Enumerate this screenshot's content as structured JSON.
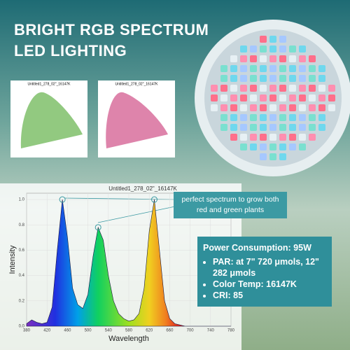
{
  "header": {
    "title": "BRIGHT RGB SPECTRUM LED LIGHTING"
  },
  "cie_diagrams": [
    {
      "title": "Untitled1_278_02\"_16147K"
    },
    {
      "title": "Untitled1_278_02\"_16147K"
    }
  ],
  "chart_data": {
    "type": "area",
    "title": "Untitled1_278_02\"_16147K",
    "x_label": "Wavelength",
    "y_label": "Intensity",
    "x": [
      380,
      390,
      400,
      410,
      420,
      430,
      440,
      450,
      460,
      470,
      480,
      490,
      500,
      510,
      520,
      530,
      540,
      550,
      560,
      570,
      580,
      590,
      600,
      610,
      620,
      630,
      640,
      650,
      660,
      670,
      680,
      690,
      700,
      710,
      720,
      730,
      740,
      750,
      760,
      770,
      780
    ],
    "values": [
      0.02,
      0.05,
      0.03,
      0.02,
      0.03,
      0.15,
      0.6,
      1.0,
      0.7,
      0.3,
      0.17,
      0.14,
      0.25,
      0.55,
      0.78,
      0.68,
      0.4,
      0.2,
      0.1,
      0.06,
      0.04,
      0.05,
      0.1,
      0.3,
      0.75,
      1.0,
      0.6,
      0.2,
      0.06,
      0.02,
      0.01,
      0,
      0,
      0,
      0,
      0,
      0,
      0,
      0,
      0,
      0
    ],
    "xlim": [
      380,
      780
    ],
    "ylim": [
      0,
      1.05
    ],
    "xticks": [
      380,
      420,
      460,
      500,
      540,
      580,
      620,
      660,
      700,
      740,
      780
    ],
    "yticks": [
      {
        "value": 0,
        "label": "0.0"
      },
      0.2,
      0.4,
      0.6,
      0.8,
      {
        "value": 1,
        "label": "1.0"
      }
    ],
    "grid": true
  },
  "callout": {
    "text": "perfect spectrum to grow both red and green plants"
  },
  "specs": {
    "heading": "Power Consumption: 95W",
    "items": [
      "PAR: at 7\" 720 μmols, 12\" 282 μmols",
      "Color Temp: 16147K",
      "CRI: 85"
    ]
  }
}
